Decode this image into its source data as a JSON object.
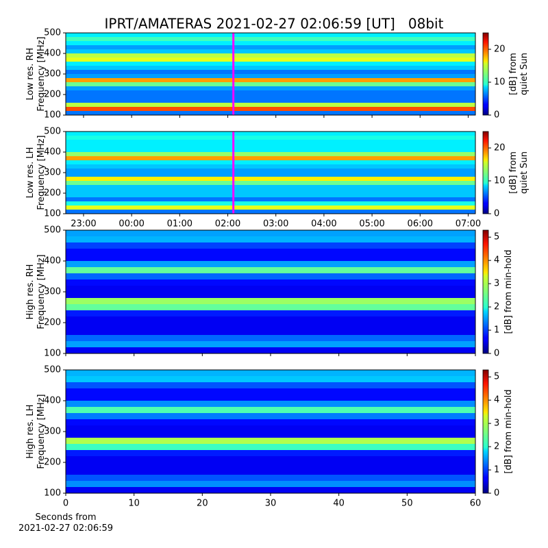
{
  "chart_data": [
    {
      "type": "heatmap",
      "title": "IPRT/AMATERAS 2021-02-27 02:06:59 [UT]   08bit",
      "ylabel": [
        "Low res. RH",
        "Frequency [MHz]"
      ],
      "xlim": [
        22.63,
        31.15
      ],
      "xticks": [
        23,
        24,
        25,
        26,
        27,
        28,
        29,
        30,
        31
      ],
      "xtick_labels": false,
      "ylim": [
        100,
        500
      ],
      "yticks": [
        100,
        200,
        300,
        400,
        500
      ],
      "y": [
        110,
        130,
        150,
        170,
        190,
        210,
        230,
        250,
        270,
        290,
        310,
        330,
        350,
        370,
        390,
        410,
        430,
        450,
        470,
        490
      ],
      "values": [
        6,
        20,
        14,
        6,
        6,
        6,
        7,
        12,
        18,
        7,
        6,
        8,
        9,
        15,
        14,
        8,
        7,
        9,
        11,
        9
      ],
      "marker_x": 26.116,
      "marker_color": "#ff00ff",
      "cblim": [
        0,
        25
      ],
      "cbticks": [
        0,
        10,
        20
      ],
      "cblabel": [
        "[dB] from",
        "quiet Sun"
      ]
    },
    {
      "type": "heatmap",
      "ylabel": [
        "Low res. LH",
        "Frequency [MHz]"
      ],
      "xlim": [
        22.63,
        31.15
      ],
      "xticks": [
        {
          "value": 23,
          "label": "23:00"
        },
        {
          "value": 24,
          "label": "00:00"
        },
        {
          "value": 25,
          "label": "01:00"
        },
        {
          "value": 26,
          "label": "02:00"
        },
        {
          "value": 27,
          "label": "03:00"
        },
        {
          "value": 28,
          "label": "04:00"
        },
        {
          "value": 29,
          "label": "05:00"
        },
        {
          "value": 30,
          "label": "06:00"
        },
        {
          "value": 31,
          "label": "07:00"
        }
      ],
      "xtick_labels": true,
      "ylim": [
        100,
        500
      ],
      "yticks": [
        100,
        200,
        300,
        400,
        500
      ],
      "y": [
        110,
        130,
        150,
        170,
        190,
        210,
        230,
        250,
        270,
        290,
        310,
        330,
        350,
        370,
        390,
        410,
        430,
        450,
        470,
        490
      ],
      "values": [
        6,
        15,
        10,
        6,
        8,
        8,
        8,
        12,
        16,
        7,
        7,
        8,
        9,
        18,
        13,
        9,
        9,
        9,
        10,
        9
      ],
      "marker_x": 26.116,
      "marker_color": "#ff00ff",
      "cblim": [
        0,
        25
      ],
      "cbticks": [
        0,
        10,
        20
      ],
      "cblabel": [
        "[dB] from",
        "quiet Sun"
      ]
    },
    {
      "type": "heatmap",
      "ylabel": [
        "High res. RH",
        "Frequency [MHz]"
      ],
      "xlim": [
        0,
        60
      ],
      "xticks": [
        0,
        10,
        20,
        30,
        40,
        50,
        60
      ],
      "xtick_labels": false,
      "ylim": [
        100,
        500
      ],
      "yticks": [
        100,
        200,
        300,
        400,
        500
      ],
      "y": [
        110,
        130,
        150,
        170,
        190,
        210,
        230,
        250,
        270,
        290,
        310,
        330,
        350,
        370,
        390,
        410,
        430,
        450,
        470,
        490
      ],
      "values": [
        0.6,
        1.5,
        1.2,
        0.6,
        0.6,
        0.6,
        0.8,
        2.5,
        2.8,
        0.6,
        0.6,
        0.7,
        1.2,
        2.5,
        1.5,
        0.7,
        0.7,
        1.0,
        1.6,
        1.5
      ],
      "cblim": [
        0,
        5.3
      ],
      "cbticks": [
        0,
        1,
        2,
        3,
        4,
        5
      ],
      "cblabel": [
        "[dB] from min-hold"
      ]
    },
    {
      "type": "heatmap",
      "ylabel": [
        "High res. LH",
        "Frequency [MHz]"
      ],
      "xlim": [
        0,
        60
      ],
      "xticks": [
        0,
        10,
        20,
        30,
        40,
        50,
        60
      ],
      "xtick_labels": true,
      "xlabel": [
        "Seconds from",
        "2021-02-27 02:06:59"
      ],
      "ylim": [
        100,
        500
      ],
      "yticks": [
        100,
        200,
        300,
        400,
        500
      ],
      "y": [
        110,
        130,
        150,
        170,
        190,
        210,
        230,
        250,
        270,
        290,
        310,
        330,
        350,
        370,
        390,
        410,
        430,
        450,
        470,
        490
      ],
      "values": [
        0.6,
        1.4,
        1.1,
        0.6,
        0.6,
        0.6,
        0.8,
        2.3,
        2.9,
        0.6,
        0.6,
        0.7,
        1.3,
        2.4,
        1.4,
        0.7,
        0.7,
        1.1,
        1.7,
        1.6
      ],
      "cblim": [
        0,
        5.3
      ],
      "cbticks": [
        0,
        1,
        2,
        3,
        4,
        5
      ],
      "cblabel": [
        "[dB] from min-hold"
      ]
    }
  ]
}
